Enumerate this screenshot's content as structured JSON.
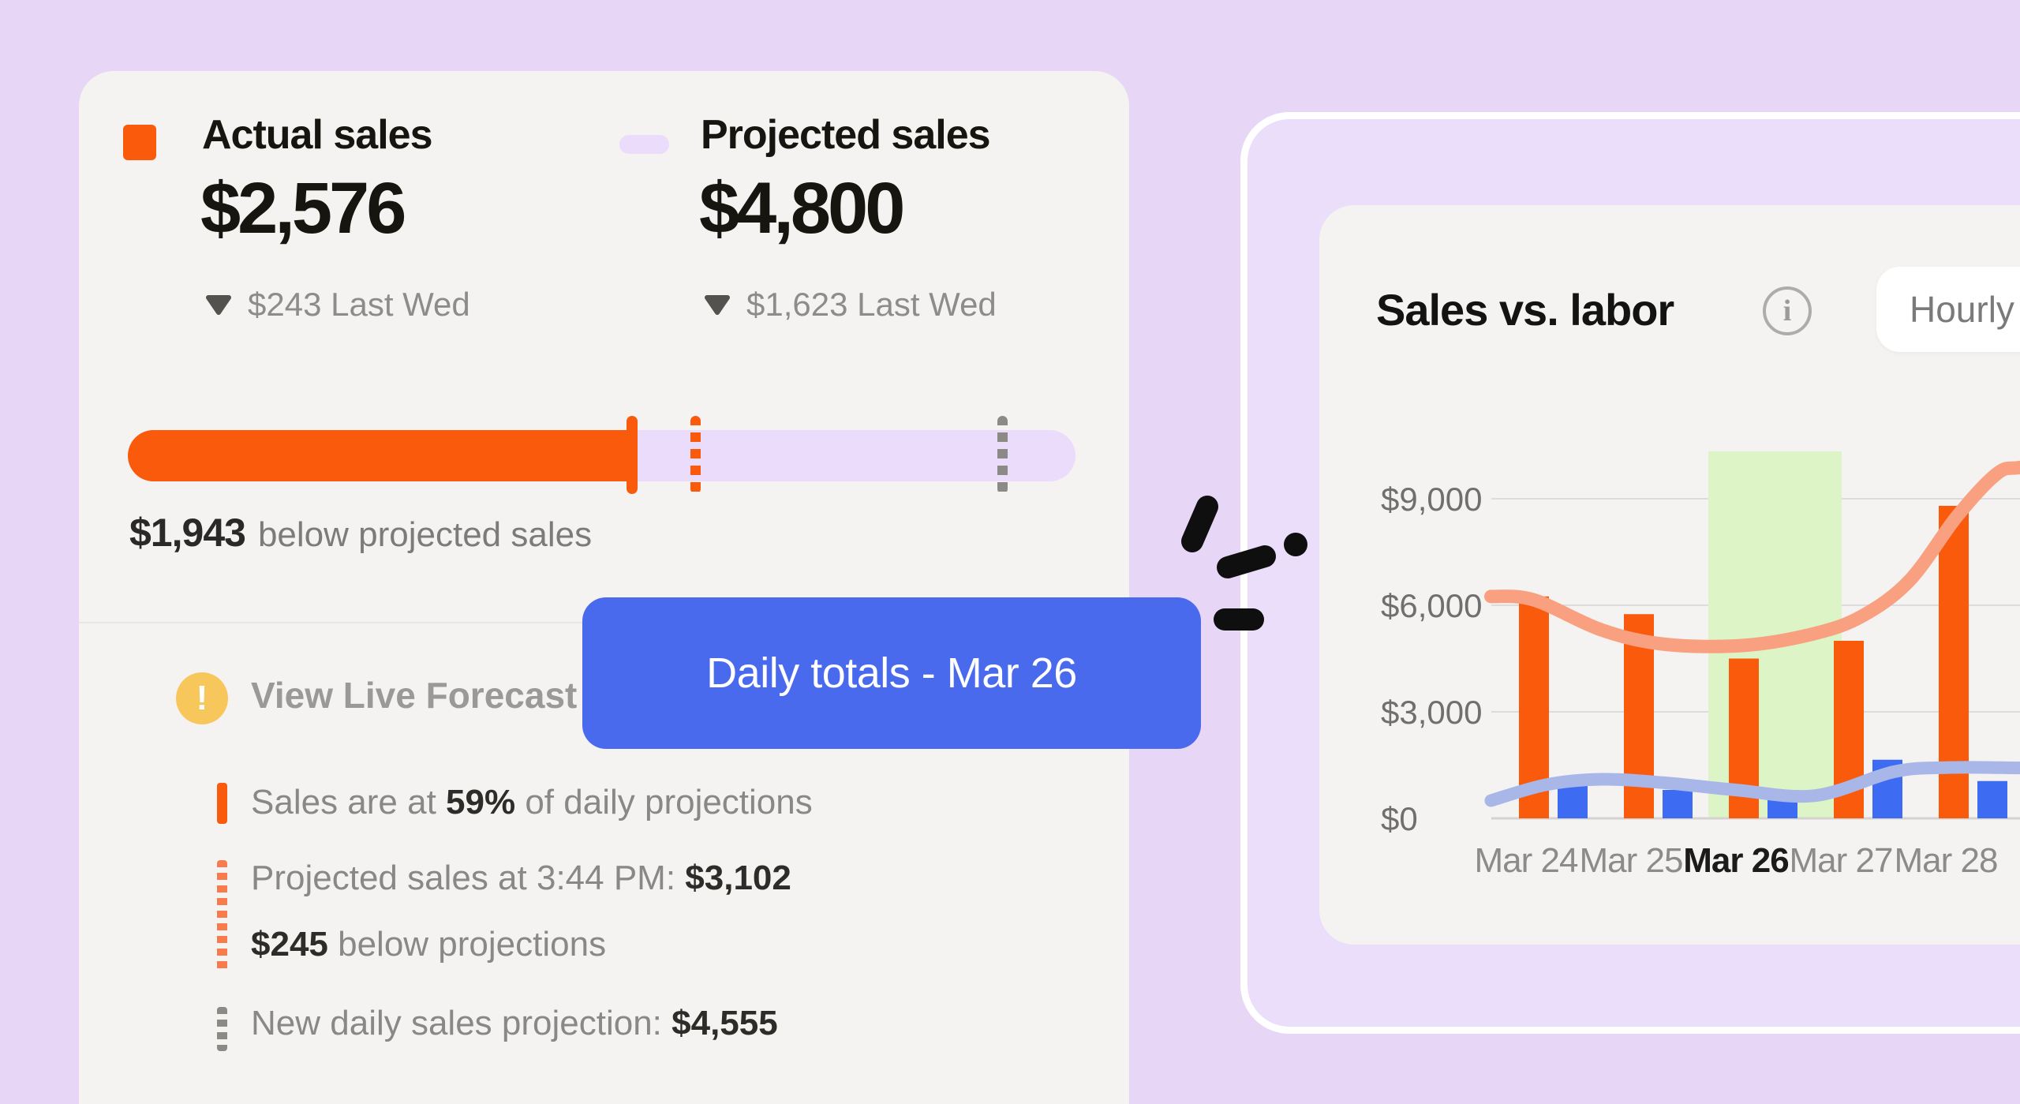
{
  "colors": {
    "page_bg": "#e7d6f6",
    "card_bg": "#f4f3f1",
    "accent_orange": "#f95a0b",
    "lavender_track": "#ecdcfb",
    "tooltip_blue": "#4a6aee",
    "warning_yellow": "#f8c75c",
    "highlight_green": "#ddf5c6",
    "actual_labor_blue": "#3d6cf2",
    "projected_sales_line": "#f9a080",
    "projected_labor_line": "#a8b6e8"
  },
  "summary_card": {
    "series": [
      {
        "label": "Actual sales",
        "value": "$2,576",
        "delta_text": "$243 Last Wed",
        "swatch": "#f95a0b",
        "swatch_shape": "square"
      },
      {
        "label": "Projected sales",
        "value": "$4,800",
        "delta_text": "$1,623 Last Wed",
        "swatch": "#ecdcfb",
        "swatch_shape": "pill"
      }
    ],
    "progress": {
      "amount": "$1,943",
      "caption": "below projected sales",
      "fill_pct": 53,
      "current_pace_marker_pct": 59,
      "projection_marker_pct": 92
    },
    "forecast": {
      "icon": "alert-icon",
      "title": "View Live Forecast",
      "items": [
        {
          "marker": "solid-orange",
          "lines": [
            [
              {
                "t": "Sales are at "
              },
              {
                "t": "59%",
                "b": true
              },
              {
                "t": " of daily projections"
              }
            ]
          ]
        },
        {
          "marker": "dashed-orange",
          "lines": [
            [
              {
                "t": "Projected sales at 3:44 PM: "
              },
              {
                "t": "$3,102",
                "b": true
              }
            ],
            [
              {
                "t": "$245",
                "b": true
              },
              {
                "t": " below projections"
              }
            ]
          ]
        },
        {
          "marker": "dashed-gray",
          "lines": [
            [
              {
                "t": "New daily sales projection: "
              },
              {
                "t": "$4,555",
                "b": true
              }
            ]
          ]
        }
      ]
    }
  },
  "tooltip": {
    "label": "Daily totals - Mar 26"
  },
  "chart_card": {
    "title": "Sales vs. labor",
    "info_icon": "info-icon",
    "range_button": "Hourly"
  },
  "chart_data": {
    "type": "combo",
    "title": "Sales vs. labor",
    "categories": [
      "Mar 24",
      "Mar 25",
      "Mar 26",
      "Mar 27",
      "Mar 28"
    ],
    "highlighted_category": "Mar 26",
    "highlighted_index": 2,
    "y_ticks": [
      "$0",
      "$3,000",
      "$6,000",
      "$9,000"
    ],
    "y_tick_values": [
      0,
      3000,
      6000,
      9000
    ],
    "ylim": [
      0,
      10000
    ],
    "grid": "horizontal",
    "legend_position": "none",
    "bar_series": [
      {
        "name": "Actual sales",
        "color": "#f95a0b",
        "values": [
          6250,
          5750,
          4500,
          5000,
          8800
        ]
      },
      {
        "name": "Actual labor",
        "color": "#3d6cf2",
        "values": [
          950,
          800,
          750,
          1650,
          1050
        ]
      }
    ],
    "line_series": [
      {
        "name": "Projected sales",
        "color": "#f9a080",
        "points": [
          [
            -0.41,
            6250
          ],
          [
            0,
            6150
          ],
          [
            0.65,
            5300
          ],
          [
            1.25,
            4900
          ],
          [
            2.0,
            4870
          ],
          [
            2.67,
            5200
          ],
          [
            3.13,
            5700
          ],
          [
            3.58,
            6700
          ],
          [
            4.03,
            8500
          ],
          [
            4.41,
            9700
          ],
          [
            4.63,
            9880
          ],
          [
            5.09,
            10000
          ]
        ]
      },
      {
        "name": "Projected labor",
        "color": "#a8b6e8",
        "points": [
          [
            -0.41,
            500
          ],
          [
            0.12,
            950
          ],
          [
            0.65,
            1100
          ],
          [
            1.25,
            1000
          ],
          [
            1.92,
            800
          ],
          [
            2.68,
            640
          ],
          [
            3.43,
            1310
          ],
          [
            3.95,
            1430
          ],
          [
            4.63,
            1420
          ],
          [
            5.09,
            1400
          ]
        ]
      }
    ]
  }
}
